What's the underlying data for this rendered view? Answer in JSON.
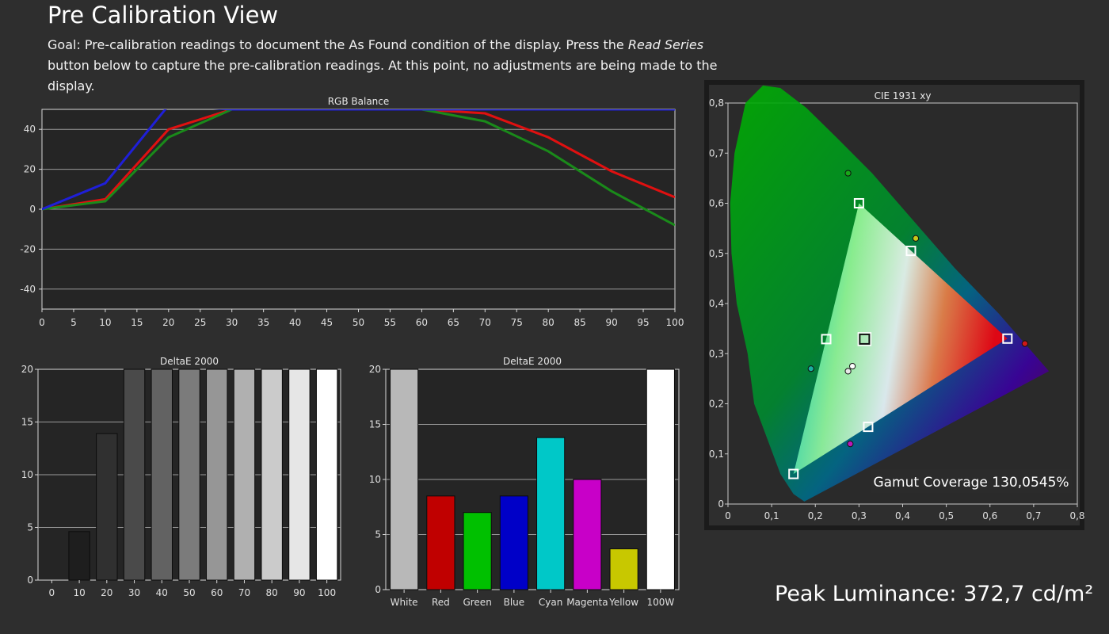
{
  "page": {
    "title": "Pre Calibration View",
    "goal_prefix": "Goal: Pre-calibration readings to document the As Found condition of the display. Press the ",
    "goal_button": "Read Series",
    "goal_suffix": " button below to capture the pre-calibration readings. At this point, no adjustments are being made to the display.",
    "peak_luminance": "Peak Luminance: 372,7 cd/m²"
  },
  "colors": {
    "background": "#2e2e2e",
    "plot_bg": "#252525",
    "red": "#e01010",
    "green": "#1a8a1a",
    "blue": "#1f1fd8"
  },
  "chart_data": [
    {
      "id": "rgb-balance",
      "type": "line",
      "title": "RGB Balance",
      "x": [
        0,
        10,
        20,
        30,
        40,
        50,
        60,
        70,
        80,
        90,
        100
      ],
      "x_ticks": [
        0,
        5,
        10,
        15,
        20,
        25,
        30,
        35,
        40,
        45,
        50,
        55,
        60,
        65,
        70,
        75,
        80,
        85,
        90,
        95,
        100
      ],
      "ylim": [
        -50,
        50
      ],
      "y_ticks": [
        -40,
        -20,
        0,
        20,
        40
      ],
      "grid": true,
      "series": [
        {
          "color": "#e01010",
          "values": [
            0,
            5,
            40,
            50,
            50,
            50,
            50,
            48,
            36,
            19,
            6
          ]
        },
        {
          "color": "#1a8a1a",
          "values": [
            0,
            4,
            36,
            50,
            50,
            50,
            50,
            44,
            29,
            9,
            -8
          ]
        },
        {
          "color": "#1f1fd8",
          "values": [
            0,
            13,
            52,
            50,
            50,
            50,
            50,
            50,
            50,
            50,
            50
          ]
        }
      ]
    },
    {
      "id": "grayscale-delta",
      "type": "bar",
      "title": "DeltaE 2000",
      "categories": [
        "0",
        "10",
        "20",
        "30",
        "40",
        "50",
        "60",
        "70",
        "80",
        "90",
        "100"
      ],
      "values": [
        0,
        4.6,
        13.9,
        20,
        20,
        20,
        20,
        20,
        20,
        20,
        20
      ],
      "bar_colors": [
        "#000000",
        "#1e1e1e",
        "#303030",
        "#4a4a4a",
        "#626262",
        "#7b7b7b",
        "#969696",
        "#b0b0b0",
        "#cbcbcb",
        "#e6e6e6",
        "#ffffff"
      ],
      "ylim": [
        0,
        20
      ],
      "y_ticks": [
        0,
        5,
        10,
        15,
        20
      ],
      "grid": true
    },
    {
      "id": "color-delta",
      "type": "bar",
      "title": "DeltaE 2000",
      "categories": [
        "White",
        "Red",
        "Green",
        "Blue",
        "Cyan",
        "Magenta",
        "Yellow",
        "100W"
      ],
      "values": [
        20,
        8.5,
        7.0,
        8.5,
        13.8,
        10.0,
        3.7,
        20
      ],
      "bar_colors": [
        "#b8b8b8",
        "#c00000",
        "#00c000",
        "#0000c8",
        "#00c8c8",
        "#c800c8",
        "#c8c800",
        "#ffffff"
      ],
      "ylim": [
        0,
        20
      ],
      "y_ticks": [
        0,
        5,
        10,
        15,
        20
      ],
      "grid": true
    },
    {
      "id": "cie-1931",
      "type": "scatter",
      "title": "CIE 1931 xy",
      "xlim": [
        0,
        0.8
      ],
      "ylim": [
        0,
        0.8
      ],
      "x_ticks": [
        "0",
        "0,1",
        "0,2",
        "0,3",
        "0,4",
        "0,5",
        "0,6",
        "0,7",
        "0,8"
      ],
      "y_ticks": [
        "0",
        "0,1",
        "0,2",
        "0,3",
        "0,4",
        "0,5",
        "0,6",
        "0,7",
        "0,8"
      ],
      "gamut_coverage": "Gamut Coverage 130,0545%",
      "targets": [
        {
          "name": "red",
          "x": 0.64,
          "y": 0.33
        },
        {
          "name": "green",
          "x": 0.3,
          "y": 0.6
        },
        {
          "name": "blue",
          "x": 0.15,
          "y": 0.06
        },
        {
          "name": "white",
          "x": 0.3127,
          "y": 0.329
        },
        {
          "name": "cyan",
          "x": 0.225,
          "y": 0.329
        },
        {
          "name": "magenta",
          "x": 0.321,
          "y": 0.154
        },
        {
          "name": "yellow",
          "x": 0.419,
          "y": 0.505
        }
      ],
      "measured": [
        {
          "name": "red",
          "x": 0.68,
          "y": 0.32,
          "color": "#d01818"
        },
        {
          "name": "green",
          "x": 0.275,
          "y": 0.66,
          "color": "#18a818"
        },
        {
          "name": "yellow",
          "x": 0.43,
          "y": 0.53,
          "color": "#c8c818"
        },
        {
          "name": "cyan",
          "x": 0.19,
          "y": 0.27,
          "color": "#18b0a0"
        },
        {
          "name": "white",
          "x": 0.285,
          "y": 0.275,
          "color": "#ffffff"
        },
        {
          "name": "white-2",
          "x": 0.275,
          "y": 0.265,
          "color": "#e8e8e8"
        },
        {
          "name": "magenta",
          "x": 0.28,
          "y": 0.12,
          "color": "#b818b8"
        }
      ]
    }
  ]
}
